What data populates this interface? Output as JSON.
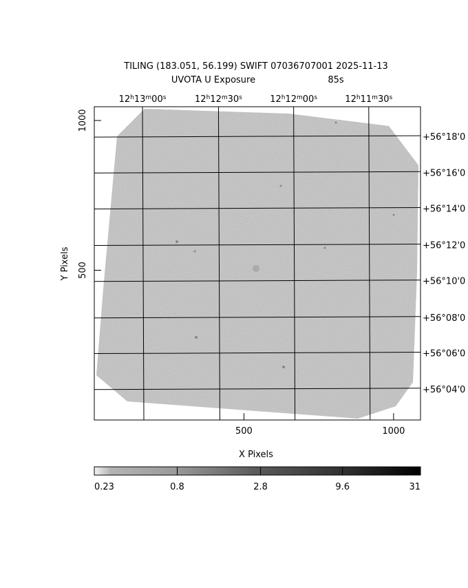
{
  "chart_data": {
    "type": "image",
    "title": "TILING (183.051, 56.199) SWIFT 07036707001 2025-11-13",
    "subtitle": "UVOTA U Exposure",
    "exposure": "85s",
    "xlabel": "X Pixels",
    "ylabel": "Y Pixels",
    "xlim": [
      0,
      1090
    ],
    "ylim": [
      0,
      1046
    ],
    "xticks": [
      500,
      1000
    ],
    "yticks": [
      500,
      1000
    ],
    "x2ticks": [
      {
        "value": 161,
        "label": "12h13m00s"
      },
      {
        "value": 415,
        "label": "12h12m30s"
      },
      {
        "value": 666,
        "label": "12h12m00s"
      },
      {
        "value": 917,
        "label": "12h11m30s"
      }
    ],
    "y2ticks": [
      {
        "value": 947,
        "label": "+56°18'0"
      },
      {
        "value": 827,
        "label": "+56°16'0"
      },
      {
        "value": 707,
        "label": "+56°14'0"
      },
      {
        "value": 585,
        "label": "+56°12'0"
      },
      {
        "value": 465,
        "label": "+56°10'0"
      },
      {
        "value": 343,
        "label": "+56°08'0"
      },
      {
        "value": 224,
        "label": "+56°06'0"
      },
      {
        "value": 104,
        "label": "+56°04'0"
      }
    ],
    "colorbar": {
      "scale": "log",
      "lim": [
        0.23,
        31
      ],
      "ticks": [
        0.23,
        0.8,
        2.8,
        9.6,
        31
      ]
    }
  }
}
